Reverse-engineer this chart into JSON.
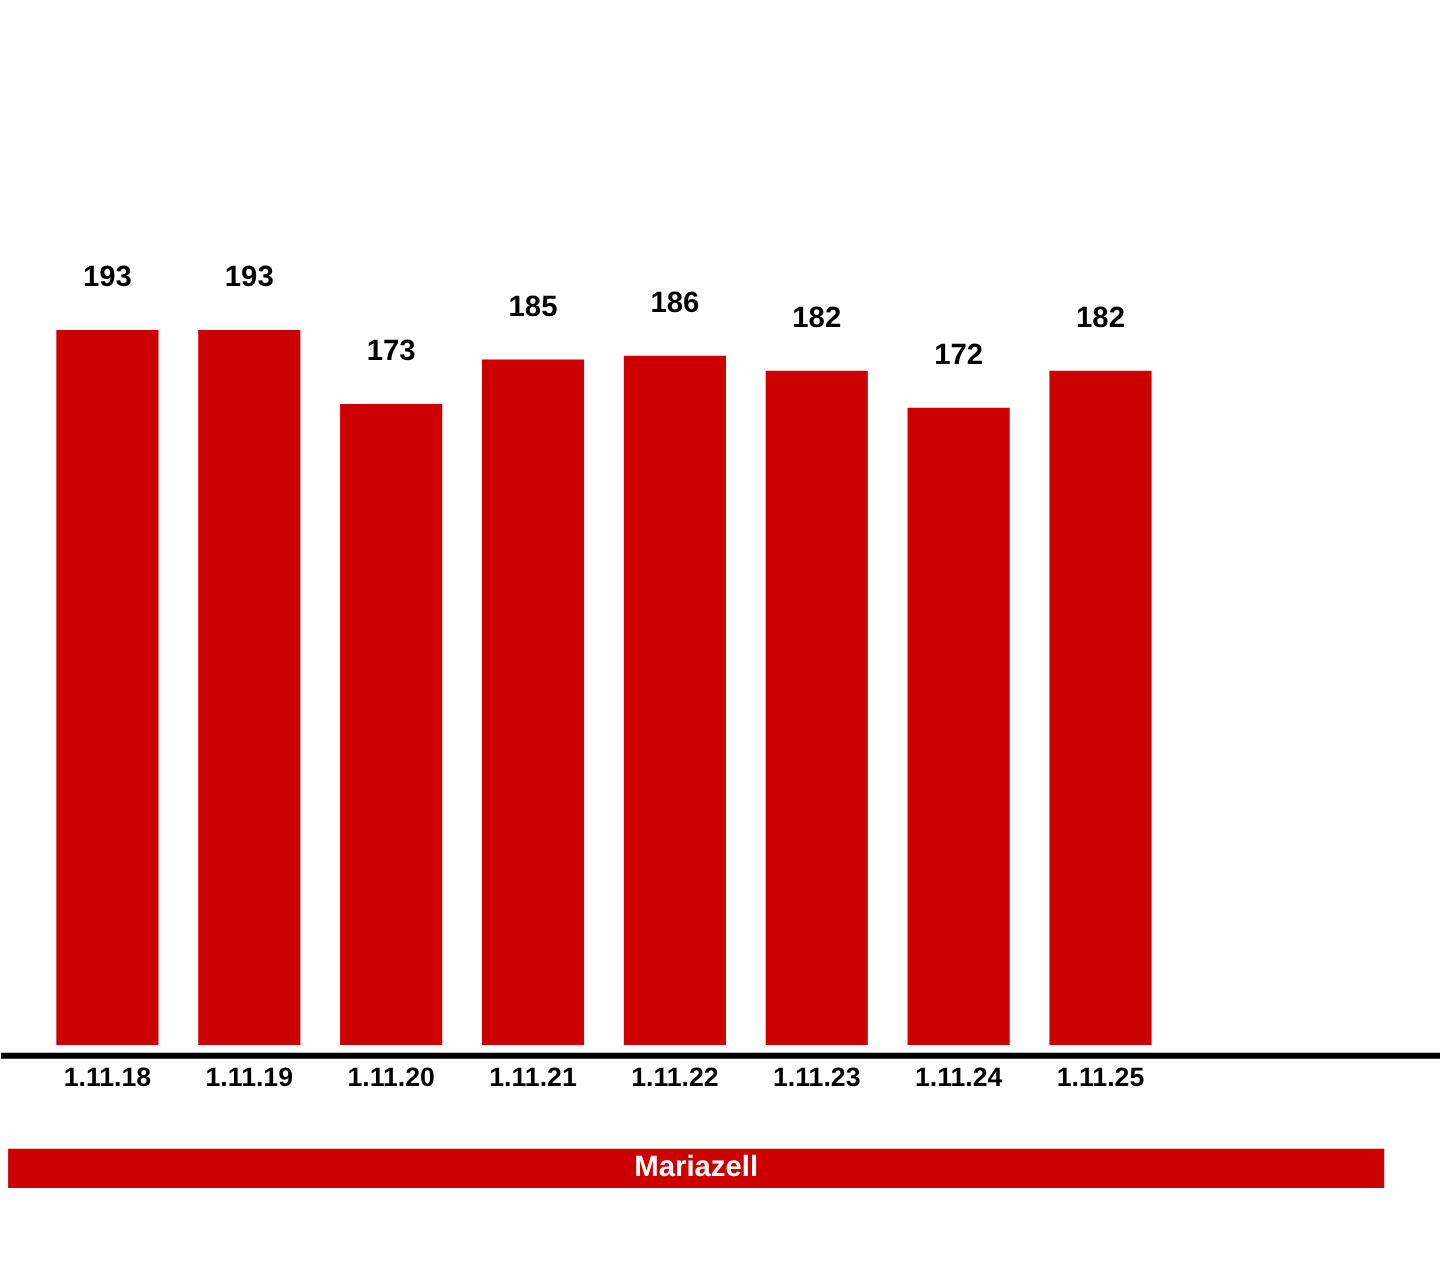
{
  "chart_data": {
    "type": "bar",
    "xlabel": "Mariazell",
    "categories": [
      "1.11.18",
      "1.11.19",
      "1.11.20",
      "1.11.21",
      "1.11.22",
      "1.11.23",
      "1.11.24",
      "1.11.25"
    ],
    "values": [
      193,
      193,
      173,
      185,
      186,
      182,
      172,
      182
    ],
    "color": "#cc0000",
    "data_labels": true,
    "grid": false
  }
}
